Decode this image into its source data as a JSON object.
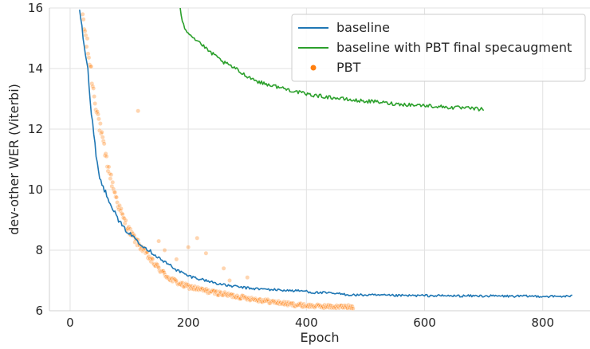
{
  "chart_data": {
    "type": "line",
    "xlabel": "Epoch",
    "ylabel": "dev-other WER (Viterbi)",
    "xlim": [
      -35,
      880
    ],
    "ylim": [
      6,
      16
    ],
    "xticks": [
      0,
      200,
      400,
      600,
      800
    ],
    "yticks": [
      6,
      8,
      10,
      12,
      14,
      16
    ],
    "grid": true,
    "legend_position": "top-right",
    "series": [
      {
        "name": "baseline",
        "kind": "line",
        "color": "#1f77b4",
        "x": [
          16,
          20,
          25,
          30,
          35,
          40,
          45,
          50,
          60,
          70,
          80,
          90,
          100,
          110,
          120,
          130,
          140,
          150,
          160,
          170,
          180,
          190,
          200,
          220,
          240,
          260,
          280,
          300,
          320,
          340,
          360,
          380,
          400,
          410,
          420,
          440,
          460,
          480,
          500,
          550,
          600,
          650,
          700,
          750,
          800,
          820,
          840,
          850
        ],
        "y": [
          16.0,
          15.4,
          14.6,
          14.0,
          12.6,
          11.9,
          11.0,
          10.4,
          9.9,
          9.5,
          9.05,
          8.75,
          8.55,
          8.4,
          8.2,
          8.05,
          7.9,
          7.75,
          7.6,
          7.5,
          7.35,
          7.25,
          7.15,
          7.05,
          6.95,
          6.85,
          6.8,
          6.75,
          6.72,
          6.7,
          6.68,
          6.66,
          6.65,
          6.6,
          6.6,
          6.58,
          6.55,
          6.52,
          6.52,
          6.5,
          6.5,
          6.49,
          6.49,
          6.48,
          6.48,
          6.47,
          6.48,
          6.48
        ]
      },
      {
        "name": "baseline with PBT final specaugment",
        "kind": "line",
        "color": "#2ca02c",
        "x": [
          186,
          190,
          195,
          200,
          210,
          220,
          230,
          240,
          250,
          260,
          270,
          280,
          290,
          300,
          310,
          320,
          330,
          340,
          350,
          360,
          380,
          400,
          420,
          440,
          460,
          480,
          500,
          520,
          540,
          560,
          580,
          600,
          620,
          640,
          660,
          680,
          700
        ],
        "y": [
          16.0,
          15.6,
          15.3,
          15.2,
          15.0,
          14.85,
          14.65,
          14.5,
          14.35,
          14.2,
          14.1,
          14.0,
          13.85,
          13.75,
          13.65,
          13.55,
          13.5,
          13.45,
          13.4,
          13.35,
          13.25,
          13.15,
          13.1,
          13.05,
          13.0,
          12.95,
          12.92,
          12.9,
          12.85,
          12.82,
          12.8,
          12.78,
          12.75,
          12.72,
          12.7,
          12.68,
          12.65
        ]
      },
      {
        "name": "PBT",
        "kind": "scatter",
        "color": "#ff7f0e",
        "curve_x": [
          20,
          25,
          30,
          35,
          40,
          45,
          50,
          55,
          60,
          70,
          80,
          90,
          100,
          110,
          120,
          130,
          140,
          150,
          160,
          170,
          180,
          190,
          200,
          220,
          240,
          260,
          280,
          300,
          320,
          340,
          360,
          380,
          400,
          420,
          440,
          460,
          480
        ],
        "curve_y": [
          16.0,
          15.2,
          14.6,
          14.0,
          13.2,
          12.7,
          12.1,
          11.6,
          11.1,
          10.3,
          9.6,
          9.05,
          8.65,
          8.35,
          8.1,
          7.85,
          7.6,
          7.4,
          7.2,
          7.05,
          6.95,
          6.85,
          6.8,
          6.7,
          6.62,
          6.55,
          6.48,
          6.42,
          6.36,
          6.3,
          6.25,
          6.2,
          6.17,
          6.15,
          6.14,
          6.13,
          6.13
        ],
        "outliers": [
          [
            115,
            12.6
          ],
          [
            215,
            8.4
          ],
          [
            200,
            8.1
          ],
          [
            230,
            7.9
          ],
          [
            180,
            7.7
          ],
          [
            260,
            7.4
          ],
          [
            300,
            7.1
          ],
          [
            150,
            8.3
          ],
          [
            160,
            8.0
          ],
          [
            270,
            7.0
          ]
        ]
      }
    ]
  }
}
